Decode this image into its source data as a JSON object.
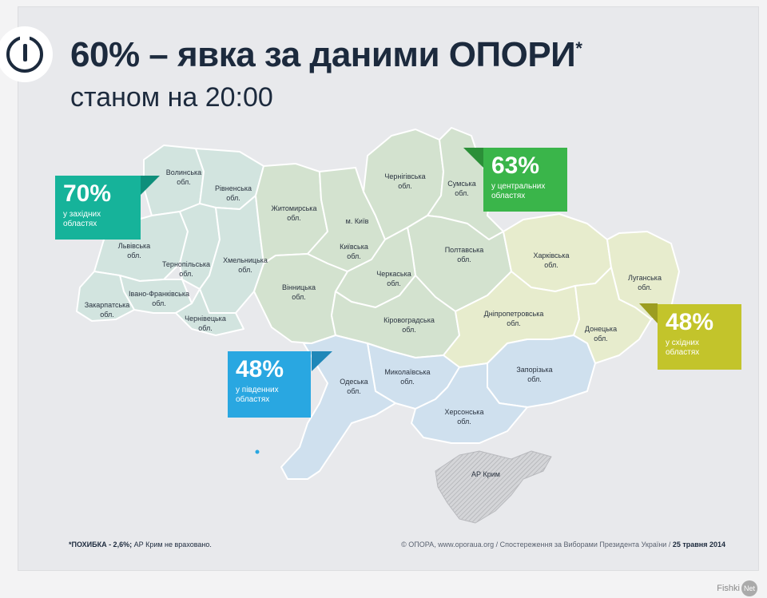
{
  "title": "60% – явка за даними ОПОРИ",
  "title_mark": "*",
  "subtitle": "станом на 20:00",
  "callouts": {
    "west": {
      "value": "70%",
      "text1": "у західних",
      "text2": "областях",
      "color": "#16b39a"
    },
    "center": {
      "value": "63%",
      "text1": "у центральних",
      "text2": "областях",
      "color": "#3ab54a"
    },
    "east": {
      "value": "48%",
      "text1": "у східних",
      "text2": "областях",
      "color": "#c3c42b"
    },
    "south": {
      "value": "48%",
      "text1": "у південних",
      "text2": "областях",
      "color": "#29a7e1"
    }
  },
  "regions": {
    "volyn": "Волинська обл.",
    "rivne": "Рівненська обл.",
    "lviv": "Львівська обл.",
    "ternopil": "Тернопільська обл.",
    "khmelnytskyi": "Хмельницька обл.",
    "ivano_frankivsk": "Івано-Франківська обл.",
    "zakarpattia": "Закарпатська обл.",
    "chernivtsi": "Чернівецька обл.",
    "zhytomyr": "Житомирська обл.",
    "kyiv_city": "м. Київ",
    "kyiv": "Київська обл.",
    "chernihiv": "Чернігівська обл.",
    "sumy": "Сумська обл.",
    "poltava": "Полтавська обл.",
    "cherkasy": "Черкаська обл.",
    "vinnytsia": "Вінницька обл.",
    "kirovohrad": "Кіровоградська обл.",
    "kharkiv": "Харківська обл.",
    "luhansk": "Луганська обл.",
    "dnipro": "Дніпропетровська обл.",
    "donetsk": "Донецька обл.",
    "zaporizhzhia": "Запорізька обл.",
    "odesa": "Одеська обл.",
    "mykolaiv": "Миколаївська обл.",
    "kherson": "Херсонська обл.",
    "crimea": "АР Крим"
  },
  "footnote": {
    "bold": "*ПОХИБКА - 2,6%;",
    "rest": " АР Крим не враховано."
  },
  "credit": {
    "text": "© ОПОРА, www.oporaua.org / Спостереження за Виборами Президента України / ",
    "date": "25 травня 2014"
  },
  "watermark": {
    "text": "Fishki",
    "badge": "Net"
  },
  "colors": {
    "west": "#d2e4df",
    "center": "#d3e2cf",
    "east": "#e7eccd",
    "south": "#cfe0ee",
    "crimea": "#dadbdd"
  }
}
